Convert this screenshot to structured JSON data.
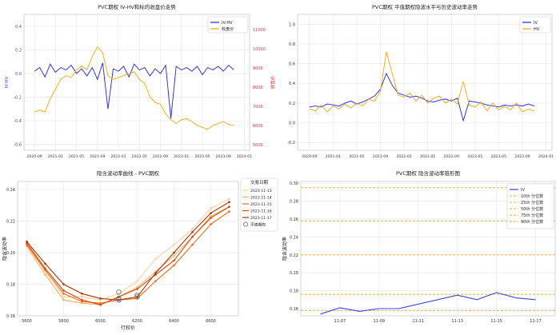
{
  "chart_data": [
    {
      "type": "line",
      "title": "PVC期权 IV-HV和标的收盘价走势",
      "ylabel": "IV-HV",
      "y2label": "收盘价",
      "x_ticks": [
        "2020-09",
        "2021-01",
        "2021-05",
        "2021-09",
        "2022-01",
        "2022-05",
        "2022-09",
        "2023-01",
        "2023-05",
        "2023-09",
        "2024-01"
      ],
      "y_ticks": [
        "-0.6",
        "-0.4",
        "-0.2",
        "0.0",
        "0.2",
        "0.4"
      ],
      "y2_ticks": [
        "5000",
        "6000",
        "7000",
        "8000",
        "9000",
        "10000",
        "11000"
      ],
      "ylim": [
        -0.65,
        0.5
      ],
      "y2lim": [
        4700,
        11800
      ],
      "legend_position": "top-right",
      "grid": true,
      "series": [
        {
          "name": "IV-HV",
          "color": "#1f1fff",
          "axis": "left",
          "x": [
            "2020-09",
            "2020-10",
            "2020-11",
            "2020-12",
            "2021-01",
            "2021-02",
            "2021-03",
            "2021-04",
            "2021-05",
            "2021-06",
            "2021-07",
            "2021-08",
            "2021-09",
            "2021-10",
            "2021-11",
            "2021-12",
            "2022-01",
            "2022-02",
            "2022-03",
            "2022-04",
            "2022-05",
            "2022-06",
            "2022-07",
            "2022-08",
            "2022-09",
            "2022-10",
            "2022-11",
            "2022-12",
            "2023-01",
            "2023-02",
            "2023-03",
            "2023-04",
            "2023-05",
            "2023-06",
            "2023-07",
            "2023-08",
            "2023-09",
            "2023-10",
            "2023-11"
          ],
          "values": [
            0.02,
            0.05,
            -0.03,
            0.08,
            0.01,
            0.05,
            0.03,
            0.07,
            0.0,
            0.04,
            -0.02,
            0.05,
            -0.05,
            0.09,
            -0.3,
            0.04,
            0.02,
            0.06,
            -0.03,
            0.08,
            0.03,
            0.05,
            -0.02,
            0.04,
            0.0,
            0.07,
            -0.38,
            0.06,
            0.03,
            0.05,
            0.02,
            0.06,
            -0.01,
            0.05,
            0.03,
            0.06,
            0.02,
            0.07,
            0.03
          ]
        },
        {
          "name": "收盘价",
          "color": "#ffa500",
          "axis": "right",
          "x": [
            "2020-09",
            "2020-10",
            "2020-11",
            "2020-12",
            "2021-01",
            "2021-02",
            "2021-03",
            "2021-04",
            "2021-05",
            "2021-06",
            "2021-07",
            "2021-08",
            "2021-09",
            "2021-10",
            "2021-11",
            "2021-12",
            "2022-01",
            "2022-02",
            "2022-03",
            "2022-04",
            "2022-05",
            "2022-06",
            "2022-07",
            "2022-08",
            "2022-09",
            "2022-10",
            "2022-11",
            "2022-12",
            "2023-01",
            "2023-02",
            "2023-03",
            "2023-04",
            "2023-05",
            "2023-06",
            "2023-07",
            "2023-08",
            "2023-09",
            "2023-10",
            "2023-11"
          ],
          "values": [
            6700,
            6800,
            6700,
            7400,
            7900,
            8400,
            8600,
            8500,
            8900,
            9100,
            8900,
            9600,
            10100,
            9800,
            8600,
            8400,
            8500,
            8600,
            8700,
            8800,
            8400,
            8200,
            7500,
            7200,
            7100,
            6600,
            6300,
            6100,
            6300,
            6350,
            6200,
            6000,
            5900,
            5800,
            6000,
            6100,
            6200,
            6050,
            6000
          ]
        }
      ]
    },
    {
      "type": "line",
      "title": "PVC期权 平值期权隐波水平与历史波动率走势",
      "x_ticks": [
        "2020-09",
        "2021-01",
        "2021-05",
        "2021-09",
        "2022-01",
        "2022-05",
        "2022-09",
        "2023-01",
        "2023-05",
        "2023-09",
        "2024-01"
      ],
      "y_ticks": [
        "-0.2",
        "0.0",
        "0.2",
        "0.4",
        "0.6",
        "0.8",
        "1.0"
      ],
      "ylim": [
        -0.28,
        1.1
      ],
      "legend_position": "top-right",
      "grid": true,
      "series": [
        {
          "name": "IV",
          "color": "#1f1fff",
          "x": [
            "2020-09",
            "2020-10",
            "2020-11",
            "2020-12",
            "2021-01",
            "2021-02",
            "2021-03",
            "2021-04",
            "2021-05",
            "2021-06",
            "2021-07",
            "2021-08",
            "2021-09",
            "2021-10",
            "2021-11",
            "2021-12",
            "2022-01",
            "2022-02",
            "2022-03",
            "2022-04",
            "2022-05",
            "2022-06",
            "2022-07",
            "2022-08",
            "2022-09",
            "2022-10",
            "2022-11",
            "2022-12",
            "2023-01",
            "2023-02",
            "2023-03",
            "2023-04",
            "2023-05",
            "2023-06",
            "2023-07",
            "2023-08",
            "2023-09",
            "2023-10",
            "2023-11"
          ],
          "values": [
            0.16,
            0.17,
            0.16,
            0.19,
            0.18,
            0.17,
            0.2,
            0.22,
            0.19,
            0.21,
            0.24,
            0.27,
            0.34,
            0.5,
            0.38,
            0.3,
            0.28,
            0.26,
            0.27,
            0.25,
            0.22,
            0.21,
            0.23,
            0.24,
            0.22,
            0.25,
            0.02,
            0.22,
            0.21,
            0.2,
            0.18,
            0.17,
            0.16,
            0.18,
            0.17,
            0.18,
            0.17,
            0.19,
            0.17
          ]
        },
        {
          "name": "HV",
          "color": "#ffa500",
          "x": [
            "2020-09",
            "2020-10",
            "2020-11",
            "2020-12",
            "2021-01",
            "2021-02",
            "2021-03",
            "2021-04",
            "2021-05",
            "2021-06",
            "2021-07",
            "2021-08",
            "2021-09",
            "2021-10",
            "2021-11",
            "2021-12",
            "2022-01",
            "2022-02",
            "2022-03",
            "2022-04",
            "2022-05",
            "2022-06",
            "2022-07",
            "2022-08",
            "2022-09",
            "2022-10",
            "2022-11",
            "2022-12",
            "2023-01",
            "2023-02",
            "2023-03",
            "2023-04",
            "2023-05",
            "2023-06",
            "2023-07",
            "2023-08",
            "2023-09",
            "2023-10",
            "2023-11"
          ],
          "values": [
            0.14,
            0.12,
            0.18,
            0.11,
            0.17,
            0.14,
            0.19,
            0.15,
            0.2,
            0.17,
            0.24,
            0.22,
            0.32,
            0.72,
            0.5,
            0.28,
            0.26,
            0.3,
            0.22,
            0.28,
            0.2,
            0.25,
            0.27,
            0.2,
            0.24,
            0.19,
            0.42,
            0.18,
            0.16,
            0.21,
            0.12,
            0.2,
            0.13,
            0.17,
            0.13,
            0.2,
            0.11,
            0.14,
            0.12
          ]
        }
      ]
    },
    {
      "type": "line",
      "title": "隐含波动率曲线 - PVC期权",
      "xlabel": "行权价",
      "ylabel": "隐含波动率",
      "xlim": [
        5550,
        6750
      ],
      "ylim": [
        0.16,
        0.245
      ],
      "x_ticks": [
        "5600",
        "5800",
        "6000",
        "6200",
        "6400",
        "6600"
      ],
      "y_ticks": [
        "0.16",
        "0.18",
        "0.20",
        "0.22",
        "0.24"
      ],
      "legend_title": "交易日期",
      "legend_position": "top-right",
      "grid": true,
      "categories": [
        5600,
        5700,
        5800,
        5900,
        6000,
        6100,
        6200,
        6300,
        6400,
        6500,
        6600,
        6700
      ],
      "series": [
        {
          "name": "2023-11-13",
          "color": "#fdd0a2",
          "values": [
            0.205,
            0.188,
            0.172,
            0.172,
            0.17,
            0.174,
            0.182,
            0.196,
            0.205,
            0.215,
            0.228,
            0.234
          ]
        },
        {
          "name": "2023-11-14",
          "color": "#fdae6b",
          "values": [
            0.204,
            0.186,
            0.17,
            0.168,
            0.167,
            0.172,
            0.178,
            0.188,
            0.198,
            0.21,
            0.223,
            0.229
          ]
        },
        {
          "name": "2023-11-15",
          "color": "#f16913",
          "values": [
            0.205,
            0.189,
            0.174,
            0.169,
            0.168,
            0.17,
            0.171,
            0.182,
            0.192,
            0.205,
            0.218,
            0.226
          ]
        },
        {
          "name": "2023-11-16",
          "color": "#d94801",
          "values": [
            0.206,
            0.19,
            0.176,
            0.17,
            0.167,
            0.172,
            0.177,
            0.186,
            0.195,
            0.21,
            0.222,
            0.229
          ]
        },
        {
          "name": "2023-11-17",
          "color": "#a63603",
          "values": [
            0.207,
            0.193,
            0.18,
            0.174,
            0.171,
            0.17,
            0.172,
            0.187,
            0.2,
            0.213,
            0.225,
            0.232
          ]
        }
      ],
      "atm_label": "平值期权",
      "atm_points": [
        {
          "x": 6100,
          "y": 0.175
        },
        {
          "x": 6200,
          "y": 0.173
        },
        {
          "x": 6100,
          "y": 0.171
        },
        {
          "x": 6100,
          "y": 0.17
        },
        {
          "x": 6200,
          "y": 0.172
        }
      ]
    },
    {
      "type": "line",
      "title": "PVC期权 隐含波动率锥形图",
      "ylabel": "隐含波动率",
      "x_ticks": [
        "11-07",
        "11-09",
        "11-11",
        "11-13",
        "11-15",
        "11-17"
      ],
      "y_ticks": [
        "0.16",
        "0.18",
        "0.20",
        "0.22",
        "0.24",
        "0.26",
        "0.28",
        "0.30"
      ],
      "ylim": [
        0.152,
        0.302
      ],
      "legend_position": "top-right",
      "grid": true,
      "series": [
        {
          "name": "IV",
          "color": "#4040e0",
          "x": [
            "11-06",
            "11-07",
            "11-08",
            "11-09",
            "11-10",
            "11-13",
            "11-14",
            "11-15",
            "11-16",
            "11-17"
          ],
          "values": [
            0.154,
            0.161,
            0.157,
            0.16,
            0.16,
            0.175,
            0.17,
            0.178,
            0.172,
            0.17
          ]
        }
      ],
      "percentiles": [
        {
          "name": "10th 分位数",
          "value": 0.158
        },
        {
          "name": "25th 分位数",
          "value": 0.176
        },
        {
          "name": "50th 分位数",
          "value": 0.22
        },
        {
          "name": "75th 分位数",
          "value": 0.258
        },
        {
          "name": "90th 分位数",
          "value": 0.295
        }
      ],
      "percentile_color": "#f5a623"
    }
  ]
}
